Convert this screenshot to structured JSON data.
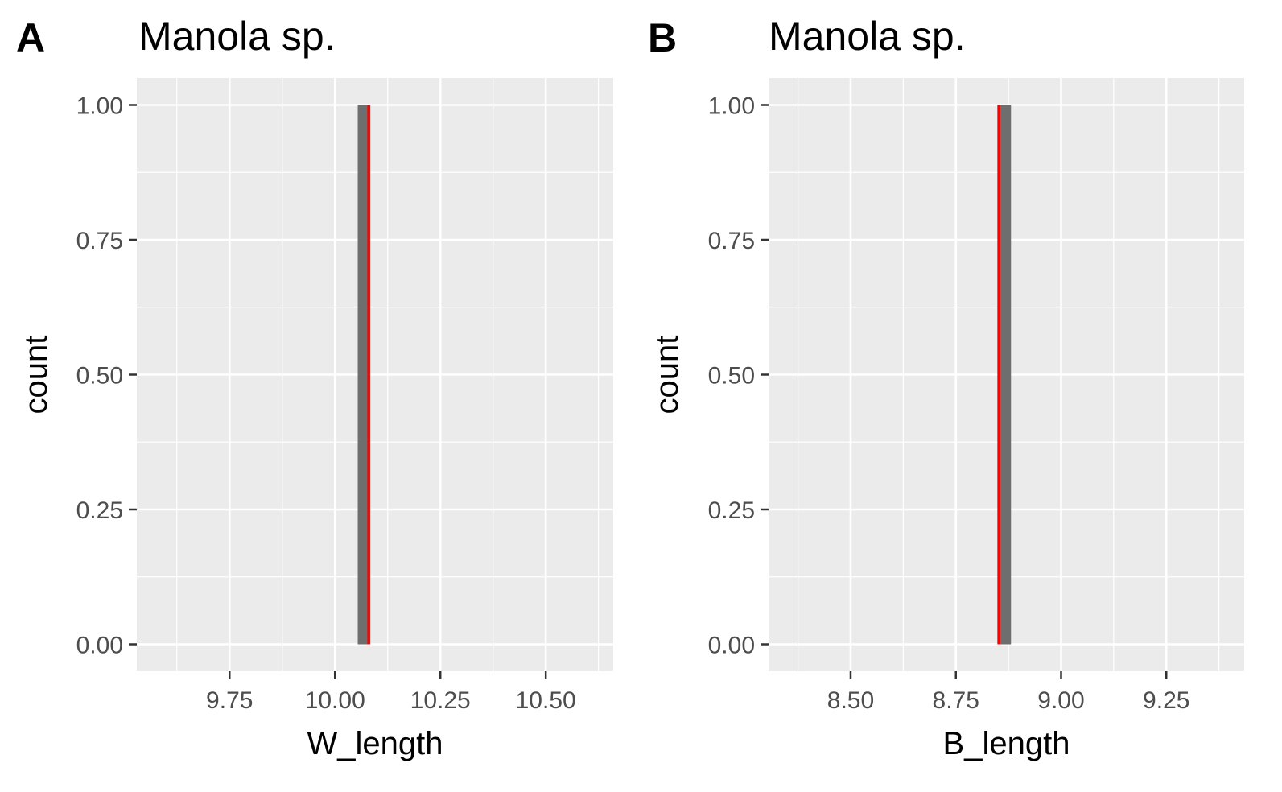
{
  "chart_data": [
    {
      "type": "bar",
      "panel_tag": "A",
      "title": "Manola sp.",
      "xlabel": "W_length",
      "ylabel": "count",
      "xlim": [
        9.53,
        10.66
      ],
      "ylim": [
        -0.05,
        1.05
      ],
      "x_ticks": [
        9.75,
        10.0,
        10.25,
        10.5
      ],
      "x_tick_labels": [
        "9.75",
        "10.00",
        "10.25",
        "10.50"
      ],
      "y_ticks": [
        0,
        0.25,
        0.5,
        0.75,
        1.0
      ],
      "y_tick_labels": [
        "0.00",
        "0.25",
        "0.50",
        "0.75",
        "1.00"
      ],
      "grid": true,
      "bars": [
        {
          "xmin": 10.054,
          "xmax": 10.084,
          "count": 1
        }
      ],
      "reference_line": {
        "x": 10.08,
        "color": "#ff0000"
      },
      "bar_color": "#6e6e6e",
      "panel_bg": "#ebebeb"
    },
    {
      "type": "bar",
      "panel_tag": "B",
      "title": "Manola sp.",
      "xlabel": "B_length",
      "ylabel": "count",
      "xlim": [
        8.305,
        9.435
      ],
      "ylim": [
        -0.05,
        1.05
      ],
      "x_ticks": [
        8.5,
        8.75,
        9.0,
        9.25
      ],
      "x_tick_labels": [
        "8.50",
        "8.75",
        "9.00",
        "9.25"
      ],
      "y_ticks": [
        0,
        0.25,
        0.5,
        0.75,
        1.0
      ],
      "y_tick_labels": [
        "0.00",
        "0.25",
        "0.50",
        "0.75",
        "1.00"
      ],
      "grid": true,
      "bars": [
        {
          "xmin": 8.851,
          "xmax": 8.881,
          "count": 1
        }
      ],
      "reference_line": {
        "x": 8.852,
        "color": "#ff0000"
      },
      "bar_color": "#6e6e6e",
      "panel_bg": "#ebebeb"
    }
  ]
}
